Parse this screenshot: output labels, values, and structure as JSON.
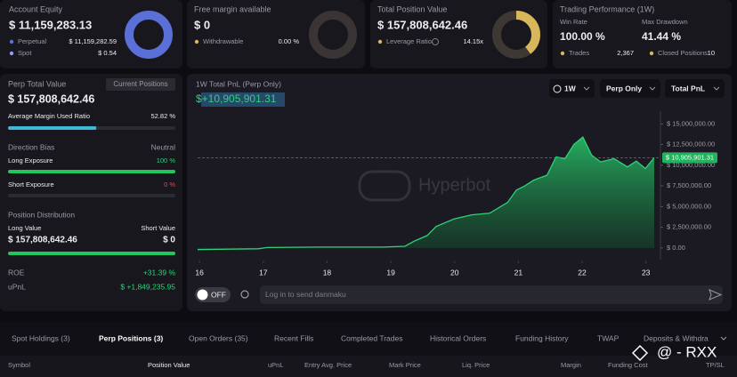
{
  "cards": [
    {
      "title": "Account Equity",
      "value": "$ 11,159,283.13",
      "rows": [
        {
          "label": "Perpetual",
          "value": "$ 11,159,282.59"
        },
        {
          "label": "Spot",
          "value": "$ 0.54"
        }
      ]
    },
    {
      "title": "Free margin available",
      "value": "$ 0",
      "rows": [
        {
          "label": "Withdrawable",
          "value": "0.00 %"
        }
      ]
    },
    {
      "title": "Total Position Value",
      "value": "$ 157,808,642.46",
      "rows": [
        {
          "label": "Leverage Ratio",
          "value": "14.15x"
        }
      ]
    }
  ],
  "performance": {
    "title": "Trading Performance (1W)",
    "stats": [
      {
        "label": "Win Rate",
        "value": "100.00 %"
      },
      {
        "label": "Max Drawdown",
        "value": "41.44 %"
      }
    ],
    "rows": [
      {
        "label": "Trades",
        "value": "2,367"
      },
      {
        "label": "Closed Positions",
        "value": "10"
      }
    ]
  },
  "perp": {
    "title": "Perp Total Value",
    "button": "Current Positions",
    "value": "$ 157,808,642.46",
    "margin": {
      "label": "Average Margin Used Ratio",
      "value": 52.82,
      "value_label": "52.82 %"
    },
    "bias": {
      "label": "Direction Bias",
      "value": "Neutral"
    },
    "long": {
      "label": "Long Exposure",
      "value": 100,
      "value_label": "100 %"
    },
    "short": {
      "label": "Short Exposure",
      "value": 0,
      "value_label": "0 %"
    },
    "distribution": {
      "title": "Position Distribution",
      "long_label": "Long Value",
      "short_label": "Short Value",
      "long_value": "$ 157,808,642.46",
      "short_value": "$ 0"
    },
    "roe": {
      "label": "ROE",
      "value": "+31.39 %"
    },
    "upnl": {
      "label": "uPnL",
      "value": "$ +1,849,235.95"
    }
  },
  "pnl_chart": {
    "type": "area",
    "title": "1W Total PnL (Perp Only)",
    "logo": "Hyperbot",
    "controls": [
      "1W",
      "Perp Only",
      "Total PnL"
    ],
    "current": {
      "value": 10905901.31,
      "label": "$ 10,905,901.31",
      "headline": "$+10,905,901.31"
    },
    "x": [
      15.97,
      16.92,
      17.06,
      17.9,
      18.45,
      18.87,
      19.22,
      19.36,
      19.57,
      19.71,
      19.99,
      20.27,
      20.55,
      20.83,
      20.97,
      21.1,
      21.24,
      21.45,
      21.59,
      21.73,
      21.87,
      22.01,
      22.15,
      22.29,
      22.5,
      22.71,
      22.85,
      22.99,
      23.13
    ],
    "values": [
      -200000,
      -100000,
      50000,
      100000,
      100000,
      100000,
      200000,
      800000,
      1500000,
      2600000,
      3500000,
      4000000,
      4200000,
      5500000,
      7000000,
      7500000,
      8200000,
      8800000,
      11000000,
      10800000,
      12500000,
      13400000,
      11200000,
      10400000,
      10800000,
      9800000,
      10500000,
      9600000,
      10900000
    ],
    "color": "#2fd27a",
    "xlim": [
      15.97,
      23.13
    ],
    "xticks": [
      16,
      17,
      18,
      19,
      20,
      21,
      22,
      23
    ],
    "ylim": [
      -1200000,
      16000000
    ],
    "yticks": [
      {
        "value": 0,
        "label": "$ 0.00"
      },
      {
        "value": 2500000,
        "label": "$ 2,500,000.00"
      },
      {
        "value": 5000000,
        "label": "$ 5,000,000.00"
      },
      {
        "value": 7500000,
        "label": "$ 7,500,000.00"
      },
      {
        "value": 10000000,
        "label": "$ 10,000,000.00"
      },
      {
        "value": 12500000,
        "label": "$ 12,500,000.00"
      },
      {
        "value": 15000000,
        "label": "$ 15,000,000.00"
      }
    ]
  },
  "danmaku": {
    "toggle": "OFF",
    "placeholder": "Log in to send danmaku"
  },
  "tabs": [
    "Spot Holdings (3)",
    "Perp Positions (3)",
    "Open Orders (35)",
    "Recent Fills",
    "Completed Trades",
    "Historical Orders",
    "Funding History",
    "TWAP",
    "Deposits & Withdra"
  ],
  "active_tab": 1,
  "columns": [
    "Symbol",
    "Position Value",
    "uPnL",
    "Entry Avg. Price",
    "Mark Price",
    "Liq. Price",
    "Margin",
    "Funding Cost",
    "TP/SL"
  ],
  "watermark": "@ - RXX"
}
